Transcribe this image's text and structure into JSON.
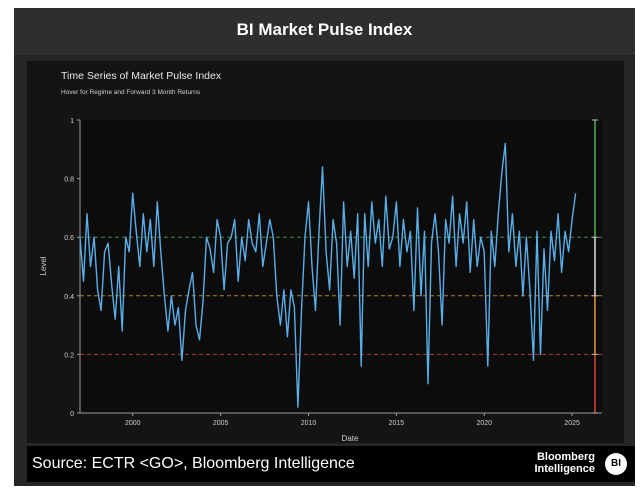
{
  "header": {
    "title": "BI Market Pulse Index"
  },
  "footer": {
    "source": "Source: ECTR <GO>, Bloomberg Intelligence",
    "brand_line1": "Bloomberg",
    "brand_line2": "Intelligence",
    "badge": "BI"
  },
  "colors": {
    "line": "#5aaee8",
    "green": "#4caf50",
    "orange": "#e89a2c",
    "red": "#d9473a",
    "white": "#e0e0e0"
  },
  "chart_data": {
    "type": "line",
    "title": "Time Series of Market Pulse Index",
    "subtitle": "Hover for Regime and Forward 3 Month Returns",
    "xlabel": "Date",
    "ylabel": "Level",
    "xlim": [
      1997.0,
      2026.7
    ],
    "ylim": [
      0,
      1
    ],
    "xticks": [
      2000,
      2005,
      2010,
      2015,
      2020,
      2025
    ],
    "yticks": [
      0,
      0.2,
      0.4,
      0.6,
      0.8,
      1
    ],
    "reference_lines": [
      {
        "y": 0.6,
        "color": "green",
        "style": "dashed"
      },
      {
        "y": 0.4,
        "color": "orange",
        "style": "dashed"
      },
      {
        "y": 0.2,
        "color": "red",
        "style": "dashed"
      }
    ],
    "regime_bar": {
      "x": 2026.3,
      "segments": [
        {
          "from": 0.0,
          "to": 0.2,
          "color": "red"
        },
        {
          "from": 0.2,
          "to": 0.4,
          "color": "orange"
        },
        {
          "from": 0.4,
          "to": 0.6,
          "color": "white"
        },
        {
          "from": 0.6,
          "to": 1.0,
          "color": "green"
        }
      ]
    },
    "series": [
      {
        "name": "Market Pulse Index",
        "x": [
          1997.0,
          1997.2,
          1997.4,
          1997.6,
          1997.8,
          1998.0,
          1998.2,
          1998.4,
          1998.6,
          1998.8,
          1999.0,
          1999.2,
          1999.4,
          1999.6,
          1999.8,
          2000.0,
          2000.2,
          2000.4,
          2000.6,
          2000.8,
          2001.0,
          2001.2,
          2001.4,
          2001.6,
          2001.8,
          2002.0,
          2002.2,
          2002.4,
          2002.6,
          2002.8,
          2003.0,
          2003.2,
          2003.4,
          2003.6,
          2003.8,
          2004.0,
          2004.2,
          2004.4,
          2004.6,
          2004.8,
          2005.0,
          2005.2,
          2005.4,
          2005.6,
          2005.8,
          2006.0,
          2006.2,
          2006.4,
          2006.6,
          2006.8,
          2007.0,
          2007.2,
          2007.4,
          2007.6,
          2007.8,
          2008.0,
          2008.2,
          2008.4,
          2008.6,
          2008.8,
          2009.0,
          2009.2,
          2009.4,
          2009.6,
          2009.8,
          2010.0,
          2010.2,
          2010.4,
          2010.6,
          2010.8,
          2011.0,
          2011.2,
          2011.4,
          2011.6,
          2011.8,
          2012.0,
          2012.2,
          2012.4,
          2012.6,
          2012.8,
          2013.0,
          2013.2,
          2013.4,
          2013.6,
          2013.8,
          2014.0,
          2014.2,
          2014.4,
          2014.6,
          2014.8,
          2015.0,
          2015.2,
          2015.4,
          2015.6,
          2015.8,
          2016.0,
          2016.2,
          2016.4,
          2016.6,
          2016.8,
          2017.0,
          2017.2,
          2017.4,
          2017.6,
          2017.8,
          2018.0,
          2018.2,
          2018.4,
          2018.6,
          2018.8,
          2019.0,
          2019.2,
          2019.4,
          2019.6,
          2019.8,
          2020.0,
          2020.2,
          2020.4,
          2020.6,
          2020.8,
          2021.0,
          2021.2,
          2021.4,
          2021.6,
          2021.8,
          2022.0,
          2022.2,
          2022.4,
          2022.6,
          2022.8,
          2023.0,
          2023.2,
          2023.4,
          2023.6,
          2023.8,
          2024.0,
          2024.2,
          2024.4,
          2024.6,
          2024.8,
          2025.0,
          2025.2
        ],
        "values": [
          0.6,
          0.45,
          0.68,
          0.5,
          0.6,
          0.42,
          0.35,
          0.55,
          0.58,
          0.44,
          0.32,
          0.5,
          0.28,
          0.6,
          0.55,
          0.75,
          0.62,
          0.5,
          0.68,
          0.55,
          0.66,
          0.5,
          0.72,
          0.55,
          0.4,
          0.28,
          0.4,
          0.3,
          0.36,
          0.18,
          0.35,
          0.42,
          0.48,
          0.3,
          0.25,
          0.38,
          0.6,
          0.56,
          0.48,
          0.66,
          0.6,
          0.42,
          0.58,
          0.6,
          0.66,
          0.45,
          0.6,
          0.52,
          0.66,
          0.58,
          0.55,
          0.68,
          0.5,
          0.58,
          0.66,
          0.6,
          0.4,
          0.3,
          0.42,
          0.26,
          0.42,
          0.36,
          0.02,
          0.35,
          0.6,
          0.72,
          0.5,
          0.35,
          0.62,
          0.84,
          0.55,
          0.42,
          0.66,
          0.58,
          0.3,
          0.72,
          0.5,
          0.62,
          0.46,
          0.68,
          0.16,
          0.68,
          0.5,
          0.72,
          0.58,
          0.66,
          0.5,
          0.74,
          0.56,
          0.6,
          0.72,
          0.5,
          0.66,
          0.55,
          0.62,
          0.35,
          0.7,
          0.4,
          0.62,
          0.1,
          0.58,
          0.68,
          0.55,
          0.3,
          0.66,
          0.58,
          0.74,
          0.5,
          0.68,
          0.58,
          0.72,
          0.48,
          0.66,
          0.5,
          0.6,
          0.55,
          0.16,
          0.62,
          0.5,
          0.68,
          0.82,
          0.92,
          0.55,
          0.68,
          0.5,
          0.62,
          0.4,
          0.6,
          0.42,
          0.18,
          0.62,
          0.2,
          0.56,
          0.35,
          0.62,
          0.52,
          0.68,
          0.48,
          0.62,
          0.55,
          0.66,
          0.75
        ]
      }
    ]
  }
}
